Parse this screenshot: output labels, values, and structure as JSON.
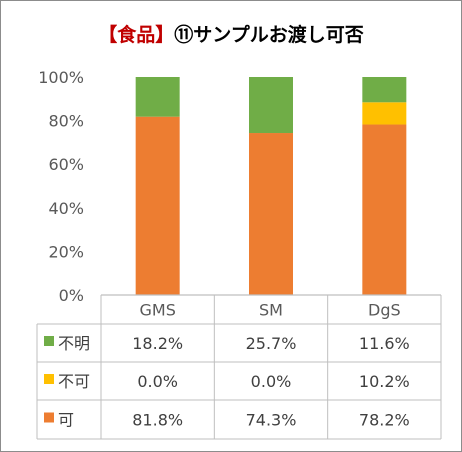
{
  "title": {
    "prefix": "【食品】",
    "main": "⑪サンプルお渡し可否"
  },
  "chart_data": {
    "type": "bar",
    "stacked": true,
    "categories": [
      "GMS",
      "SM",
      "DgS"
    ],
    "series": [
      {
        "name": "可",
        "values": [
          81.8,
          74.3,
          78.2
        ],
        "color": "#ed7d31"
      },
      {
        "name": "不可",
        "values": [
          0.0,
          0.0,
          10.2
        ],
        "color": "#ffc000"
      },
      {
        "name": "不明",
        "values": [
          18.2,
          25.7,
          11.6
        ],
        "color": "#70ad47"
      }
    ],
    "yticks": [
      "0%",
      "20%",
      "40%",
      "60%",
      "80%",
      "100%"
    ],
    "ylim": [
      0,
      100
    ],
    "data_table": {
      "rows": [
        {
          "name": "不明",
          "cells": [
            "18.2%",
            "25.7%",
            "11.6%"
          ]
        },
        {
          "name": "不可",
          "cells": [
            "0.0%",
            "0.0%",
            "10.2%"
          ]
        },
        {
          "name": "可",
          "cells": [
            "81.8%",
            "74.3%",
            "78.2%"
          ]
        }
      ]
    }
  }
}
